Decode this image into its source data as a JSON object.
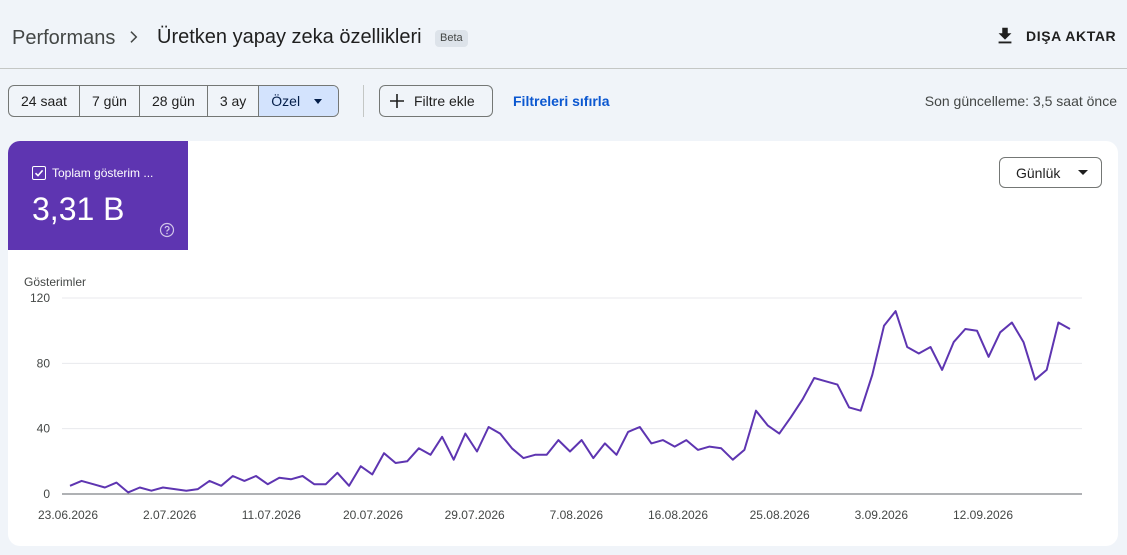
{
  "header": {
    "root": "Performans",
    "title": "Üretken yapay zeka özellikleri",
    "badge": "Beta",
    "export_label": "DIŞA AKTAR",
    "icons": {
      "separator": "chevron-right-icon",
      "export": "download-icon"
    }
  },
  "toolbar": {
    "ranges": [
      "24 saat",
      "7 gün",
      "28 gün",
      "3 ay",
      "Özel"
    ],
    "active_range": "Özel",
    "add_filter": "Filtre ekle",
    "reset": "Filtreleri sıfırla",
    "updated": "Son güncelleme: 3,5 saat önce"
  },
  "metric": {
    "label": "Toplam gösterim ...",
    "value": "3,31 B",
    "checked": true,
    "color": "#5e35b1"
  },
  "granularity": {
    "selected": "Günlük"
  },
  "chart_data": {
    "type": "line",
    "ylabel": "Gösterimler",
    "ylim": [
      0,
      120
    ],
    "yticks": [
      "0",
      "40",
      "80",
      "120"
    ],
    "xtick_labels": [
      "23.06.2026",
      "2.07.2026",
      "11.07.2026",
      "20.07.2026",
      "29.07.2026",
      "7.08.2026",
      "16.08.2026",
      "25.08.2026",
      "3.09.2026",
      "12.09.2026"
    ],
    "line_color": "#5e35b1",
    "grid": true,
    "series": [
      {
        "values": [
          5,
          8,
          6,
          4,
          7,
          1,
          4,
          2,
          4,
          3,
          2,
          3,
          8,
          5,
          11,
          8,
          11,
          6,
          10,
          9,
          11,
          6,
          6,
          13,
          5,
          17,
          12,
          25,
          19,
          20,
          28,
          24,
          35,
          21,
          37,
          26,
          41,
          37,
          28,
          22,
          24,
          24,
          33,
          26,
          33,
          22,
          31,
          24,
          38,
          41,
          31,
          33,
          29,
          33,
          27,
          29,
          28,
          21,
          27,
          51,
          42,
          37,
          47,
          58,
          71,
          69,
          67,
          53,
          51,
          73,
          103,
          112,
          90,
          86,
          90,
          76,
          93,
          101,
          100,
          84,
          99,
          105,
          93,
          70,
          76,
          105,
          101
        ]
      }
    ]
  }
}
